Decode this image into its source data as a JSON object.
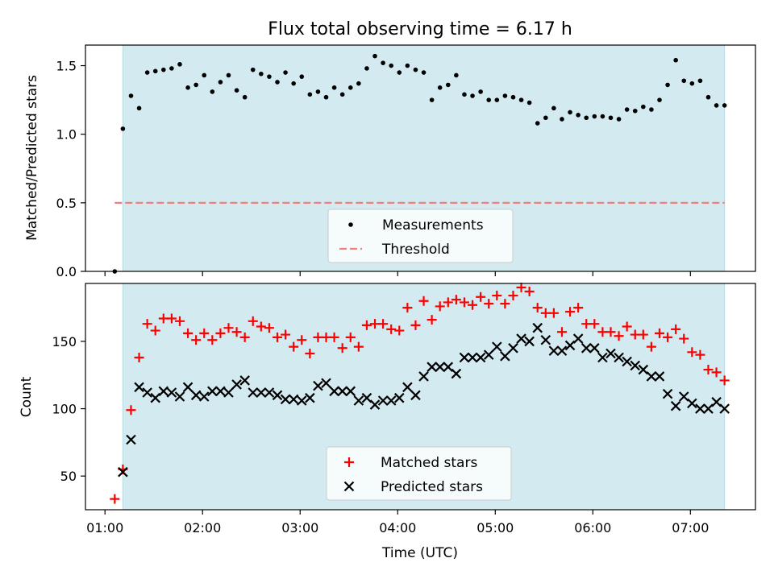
{
  "chart_data": [
    {
      "type": "scatter",
      "title": "Flux total observing time = 6.17 h",
      "xlabel": "",
      "ylabel": "Matched/Predicted stars",
      "xlim": [
        "00:48",
        "07:40"
      ],
      "ylim": [
        0,
        1.65
      ],
      "yticks": [
        0.0,
        0.5,
        1.0,
        1.5
      ],
      "ytick_labels": [
        "0.0",
        "0.5",
        "1.0",
        "1.5"
      ],
      "grid": false,
      "legend_position": "lower center",
      "observing_window": [
        "01:11",
        "07:21"
      ],
      "colors": {
        "window": "#d3eaf1",
        "measurements": "#000000",
        "threshold": "#f08080"
      },
      "threshold": {
        "name": "Threshold",
        "value": 0.5,
        "x_range": [
          "01:06",
          "07:21"
        ]
      },
      "series": [
        {
          "name": "Measurements",
          "marker": "dot",
          "color": "#000000",
          "points": [
            [
              "01:06",
              0.0
            ],
            [
              "01:11",
              1.04
            ],
            [
              "01:16",
              1.28
            ],
            [
              "01:21",
              1.19
            ],
            [
              "01:26",
              1.45
            ],
            [
              "01:31",
              1.46
            ],
            [
              "01:36",
              1.47
            ],
            [
              "01:41",
              1.48
            ],
            [
              "01:46",
              1.51
            ],
            [
              "01:51",
              1.34
            ],
            [
              "01:56",
              1.36
            ],
            [
              "02:01",
              1.43
            ],
            [
              "02:06",
              1.31
            ],
            [
              "02:11",
              1.38
            ],
            [
              "02:16",
              1.43
            ],
            [
              "02:21",
              1.32
            ],
            [
              "02:26",
              1.27
            ],
            [
              "02:31",
              1.47
            ],
            [
              "02:36",
              1.44
            ],
            [
              "02:41",
              1.42
            ],
            [
              "02:46",
              1.38
            ],
            [
              "02:51",
              1.45
            ],
            [
              "02:56",
              1.37
            ],
            [
              "03:01",
              1.42
            ],
            [
              "03:06",
              1.29
            ],
            [
              "03:11",
              1.31
            ],
            [
              "03:16",
              1.27
            ],
            [
              "03:21",
              1.34
            ],
            [
              "03:26",
              1.29
            ],
            [
              "03:31",
              1.34
            ],
            [
              "03:36",
              1.37
            ],
            [
              "03:41",
              1.48
            ],
            [
              "03:46",
              1.57
            ],
            [
              "03:51",
              1.52
            ],
            [
              "03:56",
              1.5
            ],
            [
              "04:01",
              1.45
            ],
            [
              "04:06",
              1.5
            ],
            [
              "04:11",
              1.47
            ],
            [
              "04:16",
              1.45
            ],
            [
              "04:21",
              1.25
            ],
            [
              "04:26",
              1.34
            ],
            [
              "04:31",
              1.36
            ],
            [
              "04:36",
              1.43
            ],
            [
              "04:41",
              1.29
            ],
            [
              "04:46",
              1.28
            ],
            [
              "04:51",
              1.31
            ],
            [
              "04:56",
              1.25
            ],
            [
              "05:01",
              1.25
            ],
            [
              "05:06",
              1.28
            ],
            [
              "05:11",
              1.27
            ],
            [
              "05:16",
              1.25
            ],
            [
              "05:21",
              1.23
            ],
            [
              "05:26",
              1.08
            ],
            [
              "05:31",
              1.12
            ],
            [
              "05:36",
              1.19
            ],
            [
              "05:41",
              1.11
            ],
            [
              "05:46",
              1.16
            ],
            [
              "05:51",
              1.14
            ],
            [
              "05:56",
              1.12
            ],
            [
              "06:01",
              1.13
            ],
            [
              "06:06",
              1.13
            ],
            [
              "06:11",
              1.12
            ],
            [
              "06:16",
              1.11
            ],
            [
              "06:21",
              1.18
            ],
            [
              "06:26",
              1.17
            ],
            [
              "06:31",
              1.2
            ],
            [
              "06:36",
              1.18
            ],
            [
              "06:41",
              1.25
            ],
            [
              "06:46",
              1.36
            ],
            [
              "06:51",
              1.54
            ],
            [
              "06:56",
              1.39
            ],
            [
              "07:01",
              1.37
            ],
            [
              "07:06",
              1.39
            ],
            [
              "07:11",
              1.27
            ],
            [
              "07:16",
              1.21
            ],
            [
              "07:21",
              1.21
            ]
          ]
        }
      ]
    },
    {
      "type": "scatter",
      "title": "",
      "xlabel": "Time (UTC)",
      "ylabel": "Count",
      "xlim": [
        "00:48",
        "07:40"
      ],
      "ylim": [
        25,
        193
      ],
      "yticks": [
        50,
        100,
        150
      ],
      "xticks": [
        "01:00",
        "02:00",
        "03:00",
        "04:00",
        "05:00",
        "06:00",
        "07:00"
      ],
      "grid": false,
      "legend_position": "lower center",
      "observing_window": [
        "01:11",
        "07:21"
      ],
      "colors": {
        "window": "#d3eaf1",
        "matched": "#ff0000",
        "predicted": "#000000"
      },
      "series": [
        {
          "name": "Matched stars",
          "marker": "plus",
          "color": "#ff0000",
          "points": [
            [
              "01:06",
              33
            ],
            [
              "01:11",
              55
            ],
            [
              "01:16",
              99
            ],
            [
              "01:21",
              138
            ],
            [
              "01:26",
              163
            ],
            [
              "01:31",
              158
            ],
            [
              "01:36",
              167
            ],
            [
              "01:41",
              167
            ],
            [
              "01:46",
              165
            ],
            [
              "01:51",
              156
            ],
            [
              "01:56",
              151
            ],
            [
              "02:01",
              156
            ],
            [
              "02:06",
              151
            ],
            [
              "02:11",
              156
            ],
            [
              "02:16",
              160
            ],
            [
              "02:21",
              157
            ],
            [
              "02:26",
              153
            ],
            [
              "02:31",
              165
            ],
            [
              "02:36",
              161
            ],
            [
              "02:41",
              160
            ],
            [
              "02:46",
              153
            ],
            [
              "02:51",
              155
            ],
            [
              "02:56",
              146
            ],
            [
              "03:01",
              151
            ],
            [
              "03:06",
              141
            ],
            [
              "03:11",
              153
            ],
            [
              "03:16",
              153
            ],
            [
              "03:21",
              153
            ],
            [
              "03:26",
              145
            ],
            [
              "03:31",
              153
            ],
            [
              "03:36",
              146
            ],
            [
              "03:41",
              162
            ],
            [
              "03:46",
              163
            ],
            [
              "03:51",
              163
            ],
            [
              "03:56",
              159
            ],
            [
              "04:01",
              158
            ],
            [
              "04:06",
              175
            ],
            [
              "04:11",
              162
            ],
            [
              "04:16",
              180
            ],
            [
              "04:21",
              166
            ],
            [
              "04:26",
              176
            ],
            [
              "04:31",
              179
            ],
            [
              "04:36",
              181
            ],
            [
              "04:41",
              179
            ],
            [
              "04:46",
              177
            ],
            [
              "04:51",
              183
            ],
            [
              "04:56",
              178
            ],
            [
              "05:01",
              184
            ],
            [
              "05:06",
              178
            ],
            [
              "05:11",
              184
            ],
            [
              "05:16",
              190
            ],
            [
              "05:21",
              187
            ],
            [
              "05:26",
              175
            ],
            [
              "05:31",
              171
            ],
            [
              "05:36",
              171
            ],
            [
              "05:41",
              157
            ],
            [
              "05:46",
              172
            ],
            [
              "05:51",
              175
            ],
            [
              "05:56",
              163
            ],
            [
              "06:01",
              163
            ],
            [
              "06:06",
              157
            ],
            [
              "06:11",
              157
            ],
            [
              "06:16",
              154
            ],
            [
              "06:21",
              161
            ],
            [
              "06:26",
              155
            ],
            [
              "06:31",
              155
            ],
            [
              "06:36",
              146
            ],
            [
              "06:41",
              156
            ],
            [
              "06:46",
              153
            ],
            [
              "06:51",
              159
            ],
            [
              "06:56",
              152
            ],
            [
              "07:01",
              142
            ],
            [
              "07:06",
              140
            ],
            [
              "07:11",
              129
            ],
            [
              "07:16",
              127
            ],
            [
              "07:21",
              121
            ]
          ]
        },
        {
          "name": "Predicted stars",
          "marker": "cross",
          "color": "#000000",
          "points": [
            [
              "01:11",
              53
            ],
            [
              "01:16",
              77
            ],
            [
              "01:21",
              116
            ],
            [
              "01:26",
              112
            ],
            [
              "01:31",
              108
            ],
            [
              "01:36",
              113
            ],
            [
              "01:41",
              112
            ],
            [
              "01:46",
              109
            ],
            [
              "01:51",
              116
            ],
            [
              "01:56",
              110
            ],
            [
              "02:01",
              109
            ],
            [
              "02:06",
              113
            ],
            [
              "02:11",
              113
            ],
            [
              "02:16",
              112
            ],
            [
              "02:21",
              118
            ],
            [
              "02:26",
              121
            ],
            [
              "02:31",
              112
            ],
            [
              "02:36",
              112
            ],
            [
              "02:41",
              112
            ],
            [
              "02:46",
              110
            ],
            [
              "02:51",
              107
            ],
            [
              "02:56",
              107
            ],
            [
              "03:01",
              106
            ],
            [
              "03:06",
              108
            ],
            [
              "03:11",
              117
            ],
            [
              "03:16",
              119
            ],
            [
              "03:21",
              113
            ],
            [
              "03:26",
              113
            ],
            [
              "03:31",
              113
            ],
            [
              "03:36",
              106
            ],
            [
              "03:41",
              108
            ],
            [
              "03:46",
              103
            ],
            [
              "03:51",
              106
            ],
            [
              "03:56",
              106
            ],
            [
              "04:01",
              108
            ],
            [
              "04:06",
              116
            ],
            [
              "04:11",
              110
            ],
            [
              "04:16",
              124
            ],
            [
              "04:21",
              131
            ],
            [
              "04:26",
              131
            ],
            [
              "04:31",
              131
            ],
            [
              "04:36",
              126
            ],
            [
              "04:41",
              138
            ],
            [
              "04:46",
              138
            ],
            [
              "04:51",
              138
            ],
            [
              "04:56",
              140
            ],
            [
              "05:01",
              146
            ],
            [
              "05:06",
              139
            ],
            [
              "05:11",
              145
            ],
            [
              "05:16",
              152
            ],
            [
              "05:21",
              150
            ],
            [
              "05:26",
              160
            ],
            [
              "05:31",
              151
            ],
            [
              "05:36",
              143
            ],
            [
              "05:41",
              143
            ],
            [
              "05:46",
              147
            ],
            [
              "05:51",
              152
            ],
            [
              "05:56",
              145
            ],
            [
              "06:01",
              145
            ],
            [
              "06:06",
              138
            ],
            [
              "06:11",
              141
            ],
            [
              "06:16",
              138
            ],
            [
              "06:21",
              135
            ],
            [
              "06:26",
              132
            ],
            [
              "06:31",
              129
            ],
            [
              "06:36",
              124
            ],
            [
              "06:41",
              124
            ],
            [
              "06:46",
              111
            ],
            [
              "06:51",
              102
            ],
            [
              "06:56",
              109
            ],
            [
              "07:01",
              104
            ],
            [
              "07:06",
              100
            ],
            [
              "07:11",
              100
            ],
            [
              "07:16",
              105
            ],
            [
              "07:21",
              100
            ]
          ]
        }
      ]
    }
  ]
}
